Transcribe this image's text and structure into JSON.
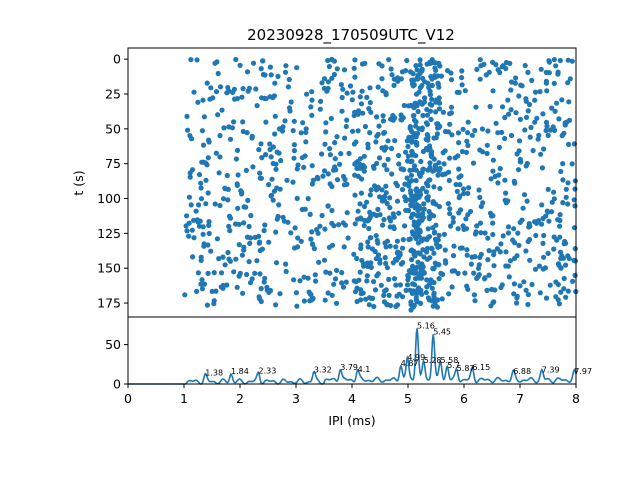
{
  "chart_data": [
    {
      "type": "scatter",
      "title": "20230928_170509UTC_V12",
      "xlabel": "",
      "ylabel": "t (s)",
      "xlim": [
        0,
        8
      ],
      "ylim": [
        185,
        -8
      ],
      "y_inverted": true,
      "yticks": [
        0,
        25,
        50,
        75,
        100,
        125,
        150,
        175
      ],
      "color": "#1f77b4",
      "density_note_x": [
        1.0,
        8.0
      ],
      "clusters": [
        {
          "x_center": 5.16,
          "y_range": [
            0,
            180
          ],
          "weight": 3
        },
        {
          "x_center": 5.45,
          "y_range": [
            0,
            180
          ],
          "weight": 3
        },
        {
          "x_center": 5.0,
          "y_range": [
            40,
            180
          ],
          "weight": 2
        },
        {
          "x_center": 4.0,
          "y_range": [
            60,
            180
          ],
          "weight": 2
        }
      ]
    },
    {
      "type": "line",
      "xlabel": "IPI (ms)",
      "ylabel": "",
      "xlim": [
        0,
        8
      ],
      "ylim": [
        0,
        85
      ],
      "xticks": [
        0,
        1,
        2,
        3,
        4,
        5,
        6,
        7,
        8
      ],
      "yticks": [
        0,
        50
      ],
      "color": "#1f77b4",
      "peaks": [
        {
          "x": 5.16,
          "y": 68,
          "label": "5.16"
        },
        {
          "x": 5.45,
          "y": 60,
          "label": "5.45"
        },
        {
          "x": 4.99,
          "y": 28,
          "label": "4.99"
        },
        {
          "x": 5.58,
          "y": 24,
          "label": "5.58"
        },
        {
          "x": 5.28,
          "y": 24,
          "label": "5.28"
        },
        {
          "x": 4.87,
          "y": 20,
          "label": "4.87"
        },
        {
          "x": 5.7,
          "y": 18,
          "label": "5.7"
        },
        {
          "x": 5.87,
          "y": 14,
          "label": "5.87"
        },
        {
          "x": 6.15,
          "y": 15,
          "label": "6.15"
        },
        {
          "x": 3.79,
          "y": 15,
          "label": "3.79"
        },
        {
          "x": 4.1,
          "y": 13,
          "label": "4.1"
        },
        {
          "x": 3.32,
          "y": 12,
          "label": "3.32"
        },
        {
          "x": 2.33,
          "y": 11,
          "label": "2.33"
        },
        {
          "x": 1.84,
          "y": 10,
          "label": "1.84"
        },
        {
          "x": 1.38,
          "y": 8,
          "label": "1.38"
        },
        {
          "x": 7.39,
          "y": 12,
          "label": "7.39"
        },
        {
          "x": 7.97,
          "y": 10,
          "label": "7.97"
        },
        {
          "x": 6.88,
          "y": 10,
          "label": "6.88"
        }
      ]
    }
  ]
}
